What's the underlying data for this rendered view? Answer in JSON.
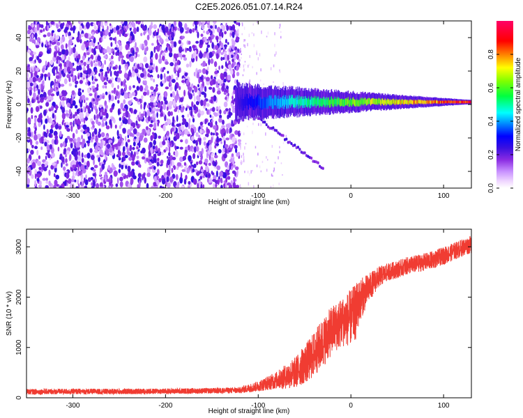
{
  "title": "C2E5.2026.051.07.14.R24",
  "chart_data": [
    {
      "type": "heatmap",
      "name": "spectrogram",
      "xlabel": "Height of straight line (km)",
      "ylabel": "Frequency (Hz)",
      "xlim": [
        -350,
        130
      ],
      "ylim": [
        -50,
        50
      ],
      "xticks": [
        -300,
        -200,
        -100,
        0,
        100
      ],
      "yticks": [
        -40,
        -20,
        0,
        20,
        40
      ],
      "description_regions": [
        {
          "label": "noise",
          "x_range": [
            -350,
            -120
          ],
          "freq_range": [
            -50,
            50
          ],
          "amplitude_range": [
            0.05,
            0.25
          ]
        },
        {
          "label": "sparse noise",
          "x_range": [
            -120,
            -70
          ],
          "freq_range": [
            -50,
            50
          ],
          "amplitude_range": [
            0.02,
            0.1
          ]
        },
        {
          "label": "signal",
          "x_range": [
            -125,
            130
          ],
          "freq_center_hz": 1.5,
          "amplitude_range": [
            0.2,
            0.95
          ]
        },
        {
          "label": "sideband",
          "x_range": [
            -100,
            -30
          ],
          "freq_start_hz": -8,
          "freq_end_hz": -38,
          "amplitude_range": [
            0.15,
            0.25
          ]
        }
      ],
      "colorbar": {
        "label": "Normalized spectral amplitude",
        "range": [
          0,
          1
        ],
        "ticks": [
          0.0,
          0.2,
          0.4,
          0.6,
          0.8
        ]
      }
    },
    {
      "type": "line",
      "name": "snr",
      "xlabel": "Height of straight line (km)",
      "ylabel": "SNR (10 * v/v)",
      "xlim": [
        -350,
        130
      ],
      "ylim": [
        0,
        3350
      ],
      "xticks": [
        -300,
        -200,
        -100,
        0,
        100
      ],
      "yticks": [
        0,
        1000,
        2000,
        3000
      ],
      "series": [
        {
          "name": "SNR",
          "color": "#f03c32",
          "x": [
            -350,
            -300,
            -250,
            -200,
            -150,
            -120,
            -100,
            -80,
            -60,
            -45,
            -30,
            -20,
            -10,
            0,
            5,
            10,
            20,
            30,
            40,
            50,
            60,
            70,
            80,
            90,
            100,
            110,
            120,
            130
          ],
          "y": [
            120,
            125,
            125,
            130,
            140,
            150,
            230,
            350,
            500,
            750,
            1100,
            1350,
            1500,
            1600,
            1700,
            1950,
            2200,
            2400,
            2500,
            2550,
            2620,
            2660,
            2700,
            2750,
            2820,
            2900,
            2980,
            3050
          ],
          "noise_amplitude": [
            80,
            80,
            80,
            80,
            80,
            90,
            150,
            250,
            450,
            600,
            700,
            700,
            700,
            800,
            800,
            600,
            400,
            300,
            250,
            250,
            250,
            250,
            250,
            250,
            250,
            250,
            250,
            250
          ]
        }
      ]
    }
  ]
}
